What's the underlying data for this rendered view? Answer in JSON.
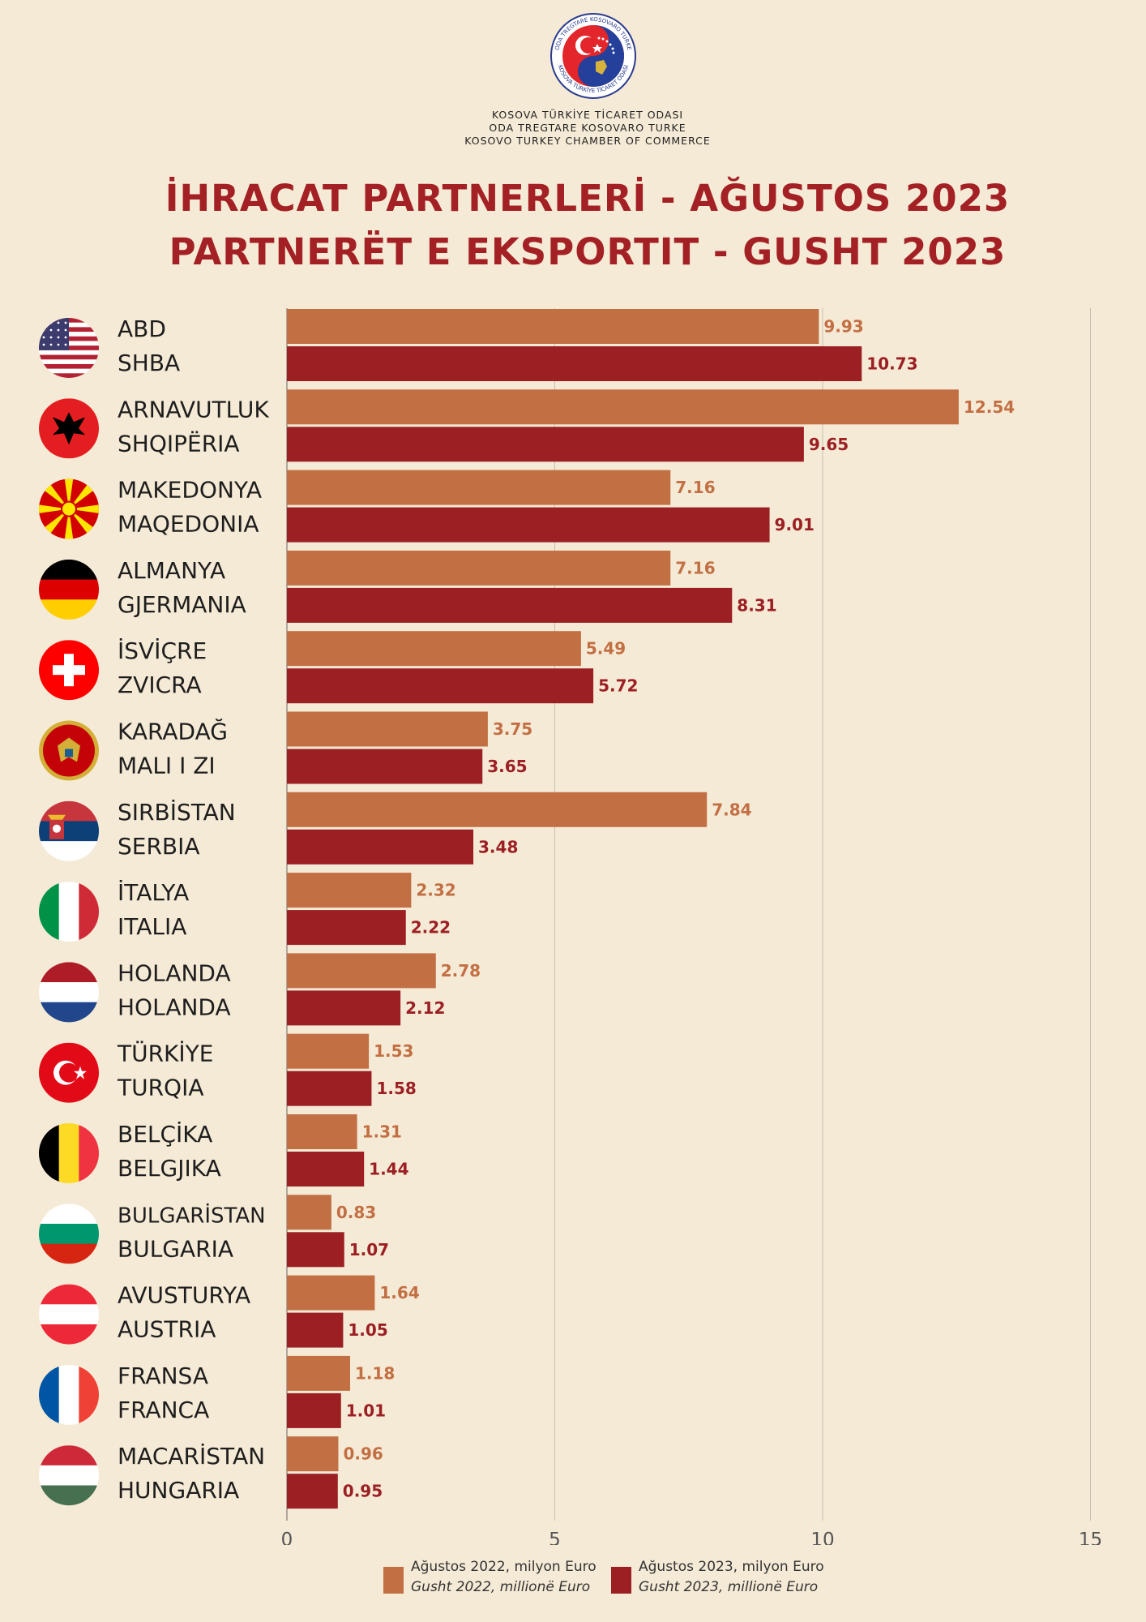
{
  "header": {
    "org_line1": "KOSOVA TÜRKİYE TİCARET ODASI",
    "org_line2": "ODA TREGTARE KOSOVARO TURKE",
    "org_line3": "KOSOVO TURKEY CHAMBER OF COMMERCE",
    "logo_text_top": "ODA TREGTARE KOSOVARO TURKE",
    "logo_text_bottom": "KOSOVA TÜRKİYE TİCARET ODASI",
    "title_line1": "İHRACAT PARTNERLERİ - AĞUSTOS 2023",
    "title_line2": "PARTNERËT E EKSPORTIT - GUSHT 2023"
  },
  "colors": {
    "background": "#f5ead6",
    "series_2022": "#c26f43",
    "series_2023": "#9b1f23",
    "title": "#a32124"
  },
  "legend": {
    "series_2022_line1": "Ağustos  2022, milyon Euro",
    "series_2022_line2": "Gusht 2022, millionë Euro",
    "series_2023_line1": "Ağustos 2023, milyon Euro",
    "series_2023_line2": "Gusht 2023, millionë Euro"
  },
  "chart_data": {
    "type": "bar",
    "orientation": "horizontal",
    "categories": [
      [
        "ABD",
        "SHBA"
      ],
      [
        "ARNAVUTLUK",
        "SHQIPËRIA"
      ],
      [
        "MAKEDONYA",
        "MAQEDONIA"
      ],
      [
        "ALMANYA",
        "GJERMANIA"
      ],
      [
        "İSVİÇRE",
        "ZVICRA"
      ],
      [
        "KARADAĞ",
        "MALI I ZI"
      ],
      [
        "SIRBİSTAN",
        "SERBIA"
      ],
      [
        "İTALYA",
        "ITALIA"
      ],
      [
        "HOLANDA",
        "HOLANDA"
      ],
      [
        "TÜRKİYE",
        "TURQIA"
      ],
      [
        "BELÇİKA",
        "BELGJIKA"
      ],
      [
        "BULGARİSTAN",
        "BULGARIA"
      ],
      [
        "AVUSTURYA",
        "AUSTRIA"
      ],
      [
        "FRANSA",
        "FRANCA"
      ],
      [
        "MACARİSTAN",
        "HUNGARIA"
      ]
    ],
    "flag_icons": [
      "usa-flag-icon",
      "albania-flag-icon",
      "north-macedonia-flag-icon",
      "germany-flag-icon",
      "switzerland-flag-icon",
      "montenegro-flag-icon",
      "serbia-flag-icon",
      "italy-flag-icon",
      "netherlands-flag-icon",
      "turkey-flag-icon",
      "belgium-flag-icon",
      "bulgaria-flag-icon",
      "austria-flag-icon",
      "france-flag-icon",
      "hungary-flag-icon"
    ],
    "series": [
      {
        "name": "Ağustos  2022, milyon Euro / Gusht 2022, millionë Euro",
        "values": [
          9.93,
          12.54,
          7.16,
          7.16,
          5.49,
          3.75,
          7.84,
          2.32,
          2.78,
          1.53,
          1.31,
          0.83,
          1.64,
          1.18,
          0.96
        ]
      },
      {
        "name": "Ağustos 2023, milyon Euro / Gusht 2023, millionë Euro",
        "values": [
          10.73,
          9.65,
          9.01,
          8.31,
          5.72,
          3.65,
          3.48,
          2.22,
          2.12,
          1.58,
          1.44,
          1.07,
          1.05,
          1.01,
          0.95
        ]
      }
    ],
    "value_labels": [
      [
        "9.93",
        "12.54",
        "7.16",
        "7.16",
        "5.49",
        "3.75",
        "7.84",
        "2.32",
        "2.78",
        "1.53",
        "1.31",
        "0.83",
        "1.64",
        "1.18",
        "0.96"
      ],
      [
        "10.73",
        "9.65",
        "9.01",
        "8.31",
        "5.72",
        "3.65",
        "3.48",
        "2.22",
        "2.12",
        "1.58",
        "1.44",
        "1.07",
        "1.05",
        "1.01",
        "0.95"
      ]
    ],
    "xlim": [
      0,
      15
    ],
    "xticks": [
      0,
      5,
      10,
      15
    ],
    "xtick_labels": [
      "0",
      "5",
      "10",
      "15"
    ],
    "grid": "vertical",
    "legend_position": "bottom"
  }
}
